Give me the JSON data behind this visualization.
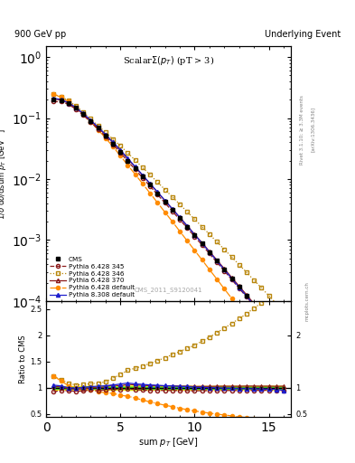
{
  "title_top_left": "900 GeV pp",
  "title_top_right": "Underlying Event",
  "plot_title": "Scalar $\\Sigma(p_T)$ (pT > 3)",
  "xlabel": "sum $p_T$ [GeV]",
  "ylabel_main": "1/$\\sigma$ d$\\sigma$/dsum $p_T$ [GeV$^{-1}$]",
  "ylabel_ratio": "Ratio to CMS",
  "watermark": "CMS_2011_S9120041",
  "x_data": [
    0.5,
    1.0,
    1.5,
    2.0,
    2.5,
    3.0,
    3.5,
    4.0,
    4.5,
    5.0,
    5.5,
    6.0,
    6.5,
    7.0,
    7.5,
    8.0,
    8.5,
    9.0,
    9.5,
    10.0,
    10.5,
    11.0,
    11.5,
    12.0,
    12.5,
    13.0,
    13.5,
    14.0,
    14.5,
    15.0,
    15.5,
    16.0
  ],
  "cms_y": [
    0.2,
    0.195,
    0.178,
    0.15,
    0.118,
    0.09,
    0.069,
    0.052,
    0.038,
    0.028,
    0.02,
    0.0148,
    0.0109,
    0.008,
    0.00585,
    0.00428,
    0.00312,
    0.00228,
    0.00166,
    0.00121,
    0.000875,
    0.000632,
    0.000456,
    0.000328,
    0.000236,
    0.00017,
    0.000122,
    8.75e-05,
    6.28e-05,
    4.49e-05,
    3.22e-05,
    2.27e-05
  ],
  "cms_yerr": [
    0.004,
    0.003,
    0.003,
    0.002,
    0.002,
    0.0015,
    0.001,
    0.001,
    0.0007,
    0.0005,
    0.0004,
    0.0003,
    0.0002,
    0.00015,
    0.0001,
    8e-05,
    6e-05,
    4e-05,
    3e-05,
    2e-05,
    1.5e-05,
    1e-05,
    8e-06,
    6e-06,
    4e-06,
    3e-06,
    2e-06,
    1.5e-06,
    1.1e-06,
    8e-07,
    6e-07,
    4e-07
  ],
  "p6_345_y": [
    0.185,
    0.185,
    0.168,
    0.14,
    0.111,
    0.086,
    0.065,
    0.05,
    0.037,
    0.027,
    0.0195,
    0.0143,
    0.0104,
    0.0076,
    0.00556,
    0.00406,
    0.00296,
    0.00216,
    0.00157,
    0.00114,
    0.000826,
    0.000598,
    0.000431,
    0.000311,
    0.000224,
    0.000161,
    0.000116,
    8.32e-05,
    5.97e-05,
    4.28e-05,
    3.06e-05,
    2.16e-05
  ],
  "p6_346_y": [
    0.245,
    0.225,
    0.193,
    0.158,
    0.125,
    0.097,
    0.075,
    0.058,
    0.045,
    0.035,
    0.0267,
    0.0203,
    0.0154,
    0.0117,
    0.00887,
    0.00672,
    0.00509,
    0.00385,
    0.0029,
    0.00219,
    0.00165,
    0.00124,
    0.000933,
    0.0007,
    0.000525,
    0.000393,
    0.000294,
    0.00022,
    0.000164,
    0.000122,
    9.1e-05,
    6.75e-05
  ],
  "p6_370_y": [
    0.205,
    0.198,
    0.175,
    0.146,
    0.116,
    0.09,
    0.069,
    0.053,
    0.04,
    0.029,
    0.0213,
    0.0156,
    0.0114,
    0.00832,
    0.00607,
    0.00443,
    0.00323,
    0.00235,
    0.00171,
    0.00124,
    0.000898,
    0.000649,
    0.000469,
    0.000338,
    0.000243,
    0.000175,
    0.000126,
    9.03e-05,
    6.47e-05,
    4.63e-05,
    3.31e-05,
    2.34e-05
  ],
  "p6_def_y": [
    0.245,
    0.22,
    0.185,
    0.15,
    0.116,
    0.087,
    0.064,
    0.047,
    0.034,
    0.024,
    0.0168,
    0.0119,
    0.00835,
    0.00585,
    0.00409,
    0.00286,
    0.002,
    0.00139,
    0.000971,
    0.000676,
    0.000471,
    0.000327,
    0.000228,
    0.000158,
    0.00011,
    7.62e-05,
    5.27e-05,
    3.65e-05,
    2.52e-05,
    1.74e-05,
    1.2e-05,
    8.26e-06
  ],
  "p8_def_y": [
    0.21,
    0.202,
    0.178,
    0.149,
    0.119,
    0.092,
    0.071,
    0.054,
    0.04,
    0.03,
    0.0218,
    0.0159,
    0.0116,
    0.00843,
    0.00613,
    0.00445,
    0.00323,
    0.00234,
    0.0017,
    0.00122,
    0.000882,
    0.000634,
    0.000455,
    0.000326,
    0.000234,
    0.000167,
    0.00012,
    8.57e-05,
    6.13e-05,
    4.37e-05,
    3.11e-05,
    2.16e-05
  ],
  "cms_color": "#000000",
  "p6_345_color": "#8B1A1A",
  "p6_346_color": "#B8860B",
  "p6_370_color": "#8B1A1A",
  "p6_def_color": "#FF8C00",
  "p8_def_color": "#1E1ECD",
  "band_green": "#32CD32",
  "band_yellow": "#FFFF00",
  "ylim_main": [
    0.0001,
    1.5
  ],
  "ylim_ratio": [
    0.45,
    2.65
  ],
  "xlim": [
    0,
    16.5
  ],
  "ratio_yticks": [
    0.5,
    1.0,
    1.5,
    2.0,
    2.5
  ],
  "ratio_yticklabels": [
    "0.5",
    "1",
    "1.5",
    "2",
    "2.5"
  ]
}
